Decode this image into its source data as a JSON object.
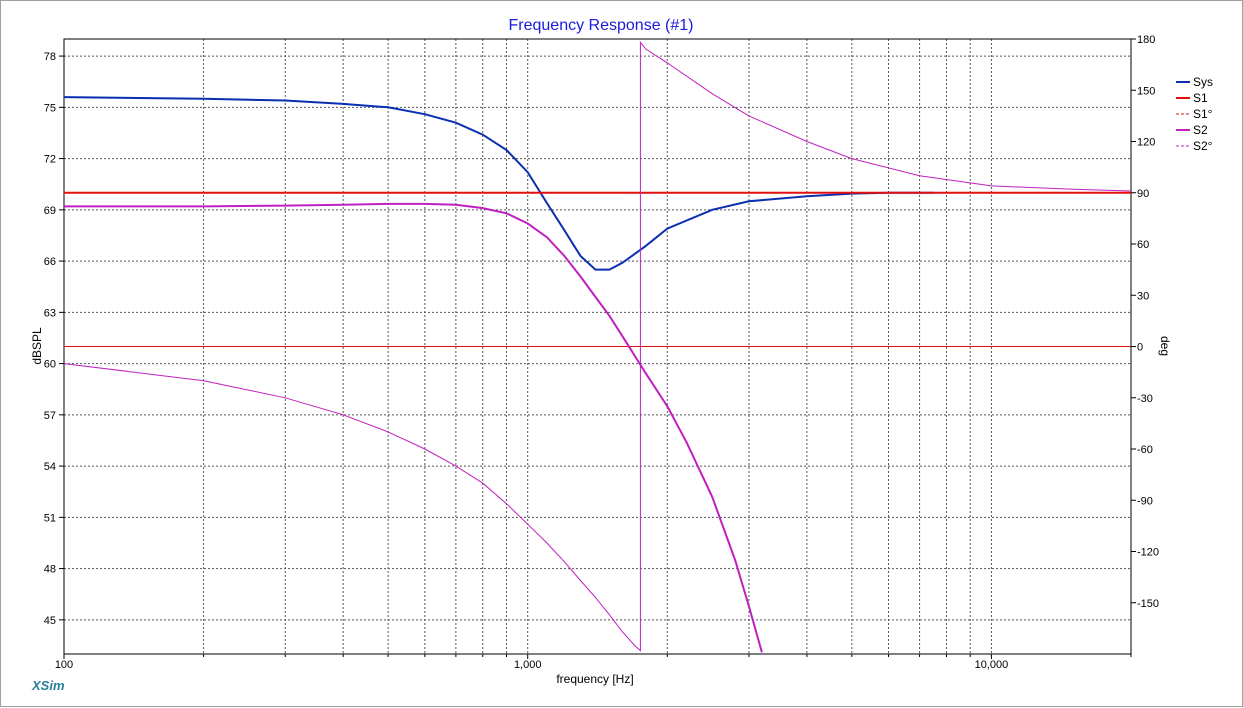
{
  "window": {
    "brand": "XSim"
  },
  "chart_data": {
    "type": "line",
    "title": "Frequency Response (#1)",
    "xlabel": "frequency [Hz]",
    "ylabel": "dBSPL",
    "y2label": "deg",
    "xscale": "log",
    "xlim": [
      100,
      20000
    ],
    "ylim": [
      43,
      79
    ],
    "y2lim": [
      -180,
      180
    ],
    "x_tick_labels": [
      {
        "value": 100,
        "label": "100"
      },
      {
        "value": 1000,
        "label": "1,000"
      },
      {
        "value": 10000,
        "label": "10,000"
      }
    ],
    "y_ticks": [
      45,
      48,
      51,
      54,
      57,
      60,
      63,
      66,
      69,
      72,
      75,
      78
    ],
    "y2_ticks": [
      180,
      150,
      120,
      90,
      60,
      30,
      0,
      -30,
      -60,
      -90,
      -120,
      -150
    ],
    "grid": true,
    "legend_position": "right",
    "legend": [
      {
        "label": "Sys",
        "color": "#0a2fb0",
        "dash": false,
        "width": 2
      },
      {
        "label": "S1",
        "color": "#e01010",
        "dash": false,
        "width": 2
      },
      {
        "label": "S1°",
        "color": "#e01010",
        "dash": true,
        "width": 1
      },
      {
        "label": "S2",
        "color": "#c020c0",
        "dash": false,
        "width": 2
      },
      {
        "label": "S2°",
        "color": "#c020c0",
        "dash": true,
        "width": 1
      }
    ],
    "series": [
      {
        "name": "Sys",
        "axis": "left",
        "color": "#0a2fb0",
        "width": 2,
        "x": [
          100,
          200,
          300,
          400,
          500,
          600,
          700,
          800,
          900,
          1000,
          1100,
          1200,
          1300,
          1400,
          1500,
          1600,
          1800,
          2000,
          2500,
          3000,
          4000,
          5000,
          6000,
          7500
        ],
        "y": [
          75.6,
          75.5,
          75.4,
          75.2,
          75.0,
          74.6,
          74.1,
          73.4,
          72.5,
          71.2,
          69.4,
          67.8,
          66.3,
          65.5,
          65.5,
          65.9,
          66.9,
          67.9,
          69.0,
          69.5,
          69.8,
          69.95,
          70.0,
          70.0
        ]
      },
      {
        "name": "S1",
        "axis": "left",
        "color": "#e01010",
        "width": 2,
        "x": [
          100,
          20000
        ],
        "y": [
          70.0,
          70.0
        ]
      },
      {
        "name": "S1°",
        "axis": "right",
        "color": "#e01010",
        "width": 1,
        "x": [
          100,
          20000
        ],
        "y": [
          0,
          0
        ]
      },
      {
        "name": "S2",
        "axis": "left",
        "color": "#c020c0",
        "width": 2,
        "x": [
          100,
          200,
          300,
          400,
          500,
          600,
          700,
          800,
          900,
          1000,
          1100,
          1200,
          1300,
          1400,
          1500,
          1600,
          1800,
          2000,
          2200,
          2500,
          2800,
          3000,
          3200
        ],
        "y": [
          69.2,
          69.2,
          69.25,
          69.3,
          69.35,
          69.35,
          69.3,
          69.1,
          68.8,
          68.2,
          67.4,
          66.3,
          65.1,
          63.9,
          62.8,
          61.6,
          59.4,
          57.5,
          55.4,
          52.2,
          48.5,
          45.8,
          43.1
        ]
      },
      {
        "name": "S2°",
        "axis": "right",
        "color": "#c020c0",
        "width": 1,
        "x": [
          100,
          200,
          300,
          400,
          500,
          600,
          700,
          800,
          900,
          1000,
          1100,
          1200,
          1300,
          1400,
          1500,
          1600,
          1700,
          1750,
          1750,
          1800,
          2000,
          2500,
          3000,
          4000,
          5000,
          7000,
          10000,
          15000,
          20000
        ],
        "y": [
          -10,
          -20,
          -30,
          -40,
          -50,
          -60,
          -70,
          -80,
          -92,
          -104,
          -115,
          -126,
          -137,
          -147,
          -157,
          -167,
          -175,
          -178,
          178,
          174,
          166,
          148,
          135,
          120,
          110,
          100,
          94,
          92,
          91
        ]
      }
    ]
  }
}
